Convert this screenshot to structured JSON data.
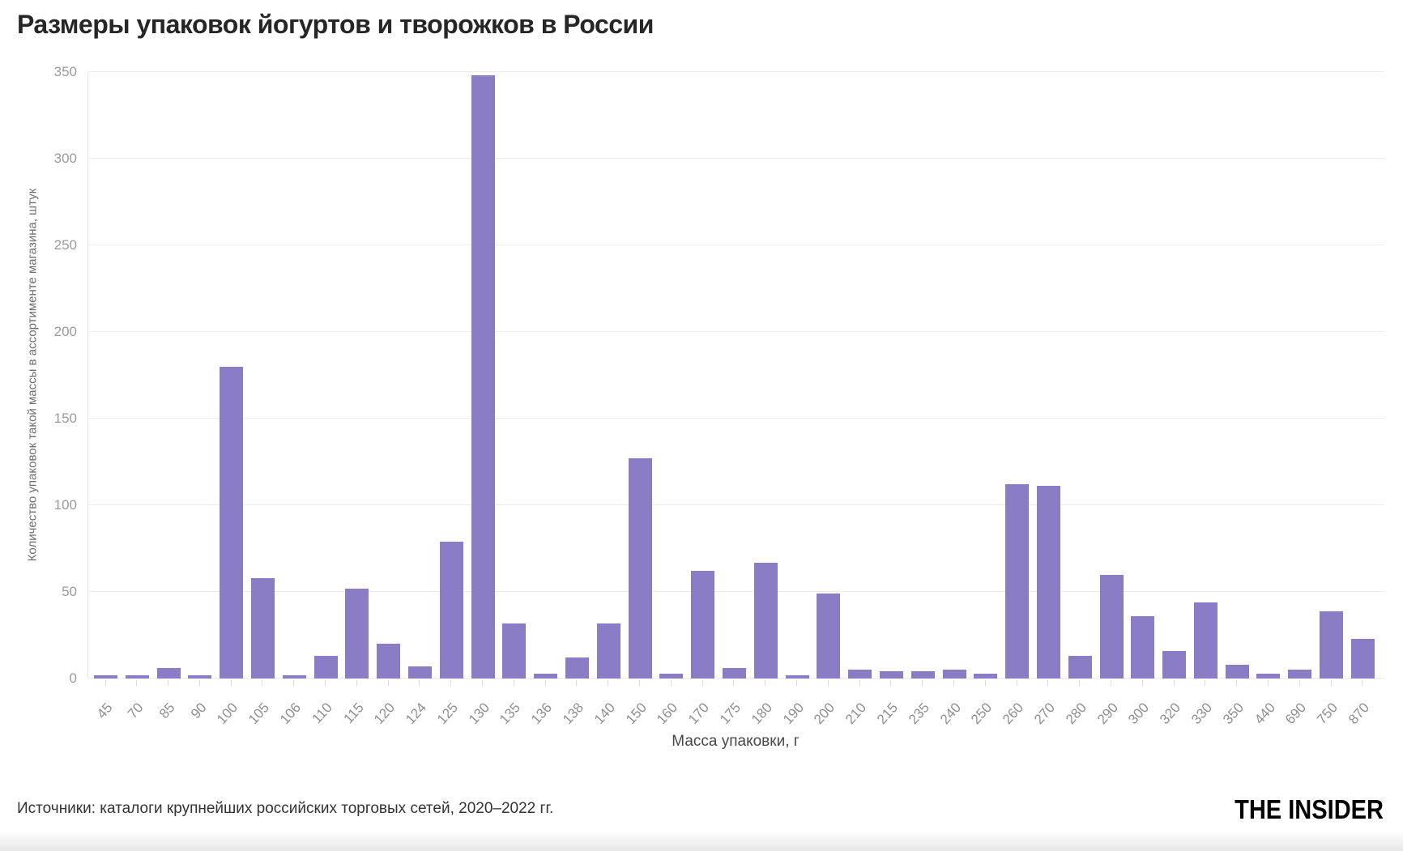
{
  "title": "Размеры упаковок йогуртов и творожков в России",
  "chart_data": {
    "type": "bar",
    "title": "Размеры упаковок йогуртов и творожков в России",
    "xlabel": "Масса упаковки, г",
    "ylabel": "Количество упаковок такой массы в ассортименте магазина, штук",
    "categories": [
      "45",
      "70",
      "85",
      "90",
      "100",
      "105",
      "106",
      "110",
      "115",
      "120",
      "124",
      "125",
      "130",
      "135",
      "136",
      "138",
      "140",
      "150",
      "160",
      "170",
      "175",
      "180",
      "190",
      "200",
      "210",
      "215",
      "235",
      "240",
      "250",
      "260",
      "270",
      "280",
      "290",
      "300",
      "320",
      "330",
      "350",
      "440",
      "690",
      "750",
      "870"
    ],
    "values": [
      2,
      2,
      6,
      2,
      180,
      58,
      2,
      13,
      52,
      20,
      7,
      79,
      348,
      32,
      3,
      12,
      32,
      127,
      3,
      62,
      6,
      67,
      2,
      49,
      5,
      4,
      4,
      5,
      3,
      112,
      111,
      13,
      60,
      36,
      16,
      44,
      8,
      3,
      5,
      39,
      23
    ],
    "ylim": [
      0,
      350
    ],
    "yticks": [
      0,
      50,
      100,
      150,
      200,
      250,
      300,
      350
    ],
    "grid": true,
    "legend_position": "none",
    "bar_color": "#8a7dc5"
  },
  "footer": {
    "source": "Источники: каталоги крупнейших российских торговых сетей, 2020–2022 гг.",
    "logo": "THE INSIDER"
  }
}
